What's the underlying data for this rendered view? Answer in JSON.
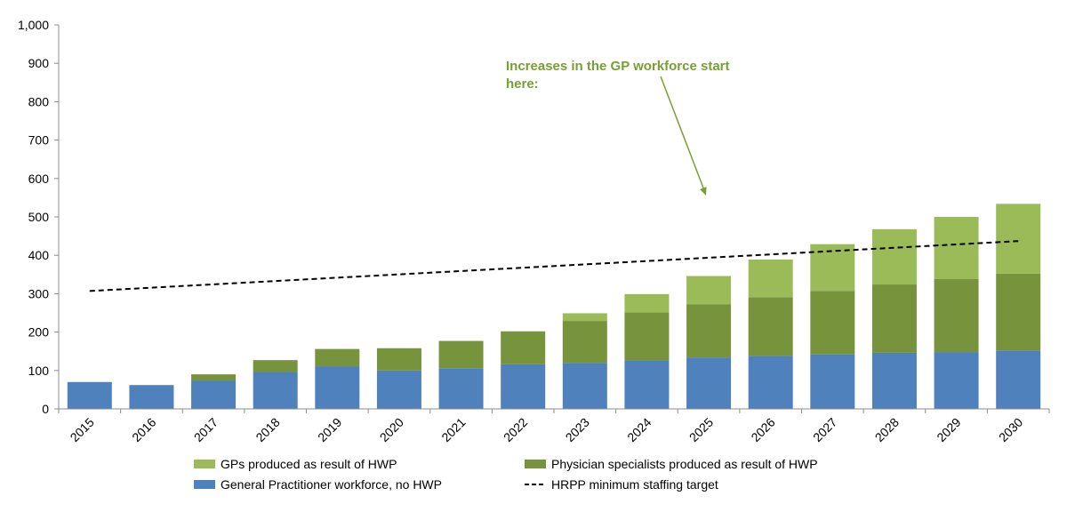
{
  "chart_data": {
    "type": "bar",
    "stacked": true,
    "categories": [
      "2015",
      "2016",
      "2017",
      "2018",
      "2019",
      "2020",
      "2021",
      "2022",
      "2023",
      "2024",
      "2025",
      "2026",
      "2027",
      "2028",
      "2029",
      "2030"
    ],
    "series": [
      {
        "name": "General Practitioner workforce, no HWP",
        "color": "#4f81bd",
        "values": [
          70,
          62,
          74,
          96,
          111,
          100,
          106,
          116,
          120,
          126,
          134,
          138,
          142,
          146,
          148,
          152
        ]
      },
      {
        "name": "Physician specialists produced as result of HWP",
        "color": "#77933c",
        "values": [
          0,
          0,
          16,
          31,
          45,
          58,
          71,
          86,
          109,
          125,
          138,
          153,
          165,
          178,
          190,
          200
        ]
      },
      {
        "name": "GPs produced as result of HWP",
        "color": "#9bbb59",
        "values": [
          0,
          0,
          0,
          0,
          0,
          0,
          0,
          0,
          20,
          48,
          74,
          98,
          122,
          144,
          162,
          182
        ]
      }
    ],
    "target_line": {
      "name": "HRPP minimum staffing target",
      "color": "#000000",
      "start": {
        "category": "2015",
        "value": 307
      },
      "end": {
        "category": "2030",
        "value": 437
      }
    },
    "ylim": [
      0,
      1000
    ],
    "yticks": [
      "0",
      "100",
      "200",
      "300",
      "400",
      "500",
      "600",
      "700",
      "800",
      "900",
      "1,000"
    ],
    "ytick_values": [
      0,
      100,
      200,
      300,
      400,
      500,
      600,
      700,
      800,
      900,
      1000
    ],
    "xlabel": "",
    "ylabel": "",
    "annotation": {
      "lines": [
        "Increases in the GP workforce start",
        "here:"
      ],
      "color": "#77a033",
      "arrow_from": {
        "category": "2024",
        "value": 860
      },
      "arrow_to": {
        "category": "2025",
        "value": 555
      }
    },
    "legend": {
      "placement": "bottom",
      "entries": [
        {
          "label": "GPs produced as result of HWP",
          "kind": "box",
          "color": "#9bbb59"
        },
        {
          "label": "Physician specialists produced as result of HWP",
          "kind": "box",
          "color": "#77933c"
        },
        {
          "label": "General Practitioner workforce, no HWP",
          "kind": "box",
          "color": "#4f81bd"
        },
        {
          "label": "HRPP minimum staffing target",
          "kind": "dash",
          "color": "#000000"
        }
      ]
    }
  }
}
